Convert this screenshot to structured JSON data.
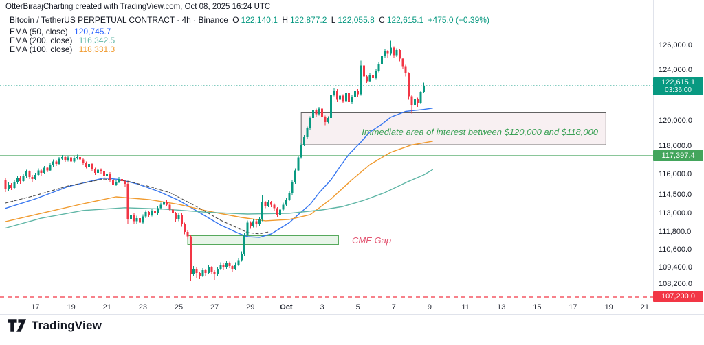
{
  "watermark": "OtterBiraajCharting created with TradingView.com, Oct 08, 2025 16:24 UTC",
  "header": {
    "title": "Bitcoin / TetherUS PERPETUAL CONTRACT · 4h · Binance",
    "o_label": "O",
    "o": "122,140.1",
    "h_label": "H",
    "h": "122,877.2",
    "l_label": "L",
    "l": "122,055.8",
    "c_label": "C",
    "c": "122,615.1",
    "change": "+475.0 (+0.39%)"
  },
  "indicators": [
    {
      "label": "EMA (50, close)",
      "value": "120,745.7",
      "color": "#2962FF"
    },
    {
      "label": "EMA (200, close)",
      "value": "116,342.5",
      "color": "#5fb6a6"
    },
    {
      "label": "EMA (100, close)",
      "value": "118,331.3",
      "color": "#f09a2e"
    }
  ],
  "annotations": {
    "interest": "Immediate area of interest between $120,000 and $118,000",
    "interest_color": "#3aa055",
    "cme": "CME Gap",
    "cme_color": "#e35672"
  },
  "price_scale": {
    "labels": [
      126000,
      124000,
      120000,
      118000,
      116000,
      114500,
      113000,
      111800,
      110600,
      109400,
      108200
    ],
    "current_badge": {
      "price": "122,615.1",
      "countdown": "03:36:00",
      "bg": "#089981"
    },
    "green_badge": {
      "price": "117,397.4",
      "bg": "#43a55c"
    },
    "red_badge": {
      "price": "107,200.0",
      "bg": "#f23645"
    }
  },
  "time_scale": {
    "ticks": [
      {
        "label": "17",
        "i": 10
      },
      {
        "label": "19",
        "i": 22
      },
      {
        "label": "21",
        "i": 34
      },
      {
        "label": "23",
        "i": 46
      },
      {
        "label": "25",
        "i": 58
      },
      {
        "label": "27",
        "i": 70
      },
      {
        "label": "29",
        "i": 82
      },
      {
        "label": "Oct",
        "i": 94,
        "bold": true
      },
      {
        "label": "3",
        "i": 106
      },
      {
        "label": "5",
        "i": 118
      },
      {
        "label": "7",
        "i": 130
      },
      {
        "label": "9",
        "i": 142
      },
      {
        "label": "11",
        "i": 154
      },
      {
        "label": "13",
        "i": 166
      },
      {
        "label": "15",
        "i": 178
      },
      {
        "label": "17",
        "i": 190
      },
      {
        "label": "19",
        "i": 202
      },
      {
        "label": "21",
        "i": 214
      }
    ]
  },
  "chart_data": {
    "type": "candlestick",
    "symbol": "BTCUSDT.P",
    "interval": "4h",
    "up_color": "#089981",
    "down_color": "#f23645",
    "candles": [
      [
        115500,
        115650,
        114650,
        114900
      ],
      [
        114900,
        115350,
        114750,
        115150
      ],
      [
        115150,
        115300,
        114800,
        114950
      ],
      [
        114950,
        115500,
        114850,
        115350
      ],
      [
        115350,
        115800,
        115250,
        115650
      ],
      [
        115650,
        115800,
        115250,
        115450
      ],
      [
        115450,
        116000,
        115350,
        115850
      ],
      [
        115850,
        116300,
        115700,
        116150
      ],
      [
        116150,
        116250,
        115600,
        115750
      ],
      [
        115750,
        115900,
        115400,
        115600
      ],
      [
        115600,
        116050,
        115500,
        115900
      ],
      [
        115900,
        116400,
        115800,
        116250
      ],
      [
        116250,
        116350,
        115850,
        116050
      ],
      [
        116050,
        116600,
        115950,
        116450
      ],
      [
        116450,
        116550,
        116100,
        116250
      ],
      [
        116250,
        116800,
        116150,
        116650
      ],
      [
        116650,
        117100,
        116550,
        116950
      ],
      [
        116950,
        117050,
        116600,
        116750
      ],
      [
        116750,
        117300,
        116650,
        117150
      ],
      [
        117150,
        117440,
        117050,
        117300
      ],
      [
        117300,
        117380,
        116900,
        117050
      ],
      [
        117050,
        117420,
        116950,
        117250
      ],
      [
        117250,
        117350,
        116800,
        116950
      ],
      [
        116950,
        117400,
        116850,
        117200
      ],
      [
        117200,
        117450,
        117100,
        117300
      ],
      [
        117300,
        117400,
        116950,
        117100
      ],
      [
        117100,
        117200,
        116700,
        116850
      ],
      [
        116850,
        116950,
        116400,
        116550
      ],
      [
        116550,
        116900,
        116450,
        116750
      ],
      [
        116750,
        116850,
        116200,
        116350
      ],
      [
        116350,
        116450,
        115900,
        116050
      ],
      [
        116050,
        116400,
        115950,
        116300
      ],
      [
        116300,
        116400,
        116000,
        116150
      ],
      [
        116150,
        116250,
        115700,
        115850
      ],
      [
        115850,
        116150,
        115750,
        116000
      ],
      [
        116000,
        116100,
        115400,
        115550
      ],
      [
        115550,
        115650,
        115000,
        115200
      ],
      [
        115200,
        115550,
        115100,
        115400
      ],
      [
        115400,
        115750,
        115300,
        115600
      ],
      [
        115600,
        115700,
        115300,
        115450
      ],
      [
        115450,
        115550,
        115050,
        115250
      ],
      [
        115250,
        115350,
        112300,
        112600
      ],
      [
        112600,
        113050,
        112450,
        112850
      ],
      [
        112850,
        112950,
        112250,
        112450
      ],
      [
        112450,
        112800,
        112300,
        112650
      ],
      [
        112650,
        112750,
        112200,
        112350
      ],
      [
        112350,
        112900,
        112250,
        112750
      ],
      [
        112750,
        113200,
        112650,
        113050
      ],
      [
        113050,
        113150,
        112700,
        112850
      ],
      [
        112850,
        113300,
        112750,
        113150
      ],
      [
        113150,
        113250,
        112800,
        112950
      ],
      [
        112950,
        113500,
        112850,
        113350
      ],
      [
        113350,
        113800,
        113250,
        113650
      ],
      [
        113650,
        114050,
        113550,
        113900
      ],
      [
        113900,
        114000,
        113500,
        113650
      ],
      [
        113650,
        113750,
        113100,
        113250
      ],
      [
        113250,
        113350,
        112800,
        112950
      ],
      [
        112950,
        113050,
        112400,
        112550
      ],
      [
        112550,
        113000,
        112450,
        112850
      ],
      [
        112850,
        112950,
        112100,
        112250
      ],
      [
        112250,
        112350,
        111600,
        111750
      ],
      [
        111750,
        111850,
        111300,
        111450
      ],
      [
        111450,
        111550,
        108400,
        108900
      ],
      [
        108900,
        109450,
        108750,
        109250
      ],
      [
        109250,
        109350,
        108550,
        108950
      ],
      [
        108950,
        109050,
        108500,
        108750
      ],
      [
        108750,
        109300,
        108650,
        109150
      ],
      [
        109150,
        109250,
        108750,
        108950
      ],
      [
        108950,
        109500,
        108850,
        109350
      ],
      [
        109350,
        109450,
        108900,
        109050
      ],
      [
        109050,
        109150,
        108450,
        108850
      ],
      [
        108850,
        109400,
        108750,
        109250
      ],
      [
        109250,
        109700,
        109150,
        109550
      ],
      [
        109550,
        109650,
        109200,
        109350
      ],
      [
        109350,
        109800,
        109250,
        109650
      ],
      [
        109650,
        109750,
        109300,
        109450
      ],
      [
        109450,
        109550,
        109050,
        109250
      ],
      [
        109250,
        109700,
        109150,
        109550
      ],
      [
        109550,
        110000,
        109450,
        109850
      ],
      [
        109850,
        110450,
        109750,
        110250
      ],
      [
        110250,
        111700,
        110150,
        111550
      ],
      [
        111550,
        112500,
        111450,
        112350
      ],
      [
        112350,
        112450,
        111950,
        112150
      ],
      [
        112150,
        112600,
        112050,
        112450
      ],
      [
        112450,
        112550,
        112050,
        112250
      ],
      [
        112250,
        112700,
        112150,
        112550
      ],
      [
        112550,
        114400,
        112450,
        113850
      ],
      [
        113850,
        113950,
        113350,
        113550
      ],
      [
        113550,
        114000,
        113450,
        113850
      ],
      [
        113850,
        113950,
        113450,
        113650
      ],
      [
        113650,
        113750,
        113150,
        113350
      ],
      [
        113350,
        113450,
        112700,
        112850
      ],
      [
        112850,
        113400,
        112750,
        113250
      ],
      [
        113250,
        113800,
        113150,
        113650
      ],
      [
        113650,
        114200,
        113550,
        114050
      ],
      [
        114050,
        114700,
        113950,
        114550
      ],
      [
        114550,
        115500,
        114450,
        115350
      ],
      [
        115350,
        116400,
        115250,
        116250
      ],
      [
        116250,
        117400,
        116150,
        117250
      ],
      [
        117250,
        118200,
        117150,
        118050
      ],
      [
        118050,
        118800,
        117950,
        118650
      ],
      [
        118650,
        119500,
        118550,
        119350
      ],
      [
        119350,
        120300,
        119250,
        120150
      ],
      [
        120150,
        120900,
        120050,
        120750
      ],
      [
        120750,
        120850,
        120250,
        120450
      ],
      [
        120450,
        121000,
        120350,
        120850
      ],
      [
        120850,
        120950,
        120100,
        120250
      ],
      [
        120250,
        120350,
        119600,
        119850
      ],
      [
        119850,
        120300,
        119700,
        120150
      ],
      [
        120150,
        122600,
        120050,
        121900
      ],
      [
        121900,
        122450,
        121800,
        122250
      ],
      [
        122250,
        122350,
        121400,
        121550
      ],
      [
        121550,
        122000,
        121450,
        121850
      ],
      [
        121850,
        121950,
        121300,
        121450
      ],
      [
        121450,
        122200,
        121350,
        122050
      ],
      [
        122050,
        122150,
        120900,
        121350
      ],
      [
        121350,
        121900,
        121250,
        121750
      ],
      [
        121750,
        122400,
        121650,
        122250
      ],
      [
        122250,
        122350,
        121750,
        121950
      ],
      [
        121950,
        124700,
        121850,
        124300
      ],
      [
        124300,
        124400,
        123250,
        123400
      ],
      [
        123400,
        123500,
        122850,
        123000
      ],
      [
        123000,
        123700,
        122900,
        123550
      ],
      [
        123550,
        123650,
        123050,
        123250
      ],
      [
        123250,
        124000,
        123150,
        123850
      ],
      [
        123850,
        124600,
        123750,
        124450
      ],
      [
        124450,
        125200,
        124350,
        125050
      ],
      [
        125050,
        125600,
        124900,
        125450
      ],
      [
        125450,
        125550,
        124950,
        125250
      ],
      [
        125250,
        126300,
        125150,
        125750
      ],
      [
        125750,
        125850,
        124950,
        125150
      ],
      [
        125150,
        125700,
        125000,
        125550
      ],
      [
        125550,
        125650,
        124650,
        124850
      ],
      [
        124850,
        124950,
        124050,
        124250
      ],
      [
        124250,
        124350,
        123400,
        123650
      ],
      [
        123650,
        123750,
        121550,
        121800
      ],
      [
        121800,
        121900,
        120500,
        121150
      ],
      [
        121150,
        121800,
        121050,
        121600
      ],
      [
        121600,
        121700,
        121000,
        121300
      ],
      [
        121300,
        122250,
        121200,
        122140
      ],
      [
        122140,
        122877,
        122056,
        122615
      ]
    ],
    "lines": [
      {
        "name": "EMA 50",
        "color": "#3575f0",
        "width": 1.4,
        "dash": null,
        "points": [
          [
            0,
            113350
          ],
          [
            10,
            114110
          ],
          [
            21,
            115050
          ],
          [
            33,
            115680
          ],
          [
            38,
            115570
          ],
          [
            44,
            115250
          ],
          [
            51,
            114720
          ],
          [
            58,
            114000
          ],
          [
            65,
            113000
          ],
          [
            72,
            112200
          ],
          [
            78,
            111660
          ],
          [
            81,
            111430
          ],
          [
            85,
            111390
          ],
          [
            89,
            111620
          ],
          [
            95,
            112350
          ],
          [
            98,
            112870
          ],
          [
            102,
            113670
          ],
          [
            105,
            114600
          ],
          [
            109,
            115550
          ],
          [
            112,
            116540
          ],
          [
            115,
            117480
          ],
          [
            119,
            118270
          ],
          [
            122,
            119060
          ],
          [
            126,
            119670
          ],
          [
            129,
            120220
          ],
          [
            134,
            120660
          ],
          [
            140,
            120800
          ],
          [
            143,
            120900
          ]
        ]
      },
      {
        "name": "EMA 100",
        "color": "#f09a2e",
        "width": 1.4,
        "dash": null,
        "points": [
          [
            0,
            112420
          ],
          [
            12,
            112960
          ],
          [
            26,
            113720
          ],
          [
            37,
            114280
          ],
          [
            48,
            114060
          ],
          [
            58,
            113670
          ],
          [
            68,
            113110
          ],
          [
            79,
            112690
          ],
          [
            87,
            112470
          ],
          [
            95,
            112560
          ],
          [
            102,
            112870
          ],
          [
            109,
            114110
          ],
          [
            116,
            115550
          ],
          [
            122,
            116700
          ],
          [
            129,
            117600
          ],
          [
            136,
            118040
          ],
          [
            143,
            118330
          ]
        ]
      },
      {
        "name": "EMA 200",
        "color": "#5fb6a6",
        "width": 1.4,
        "dash": null,
        "points": [
          [
            0,
            112000
          ],
          [
            12,
            112640
          ],
          [
            26,
            113180
          ],
          [
            40,
            113400
          ],
          [
            53,
            113290
          ],
          [
            67,
            113040
          ],
          [
            81,
            112910
          ],
          [
            95,
            112960
          ],
          [
            106,
            113220
          ],
          [
            113,
            113500
          ],
          [
            120,
            114000
          ],
          [
            127,
            114610
          ],
          [
            134,
            115340
          ],
          [
            140,
            115900
          ],
          [
            143,
            116300
          ]
        ]
      },
      {
        "name": "dashed trend",
        "color": "#4a4a4a",
        "width": 1.1,
        "dash": "4 3",
        "points": [
          [
            0,
            113780
          ],
          [
            10,
            114390
          ],
          [
            21,
            115100
          ],
          [
            33,
            115600
          ],
          [
            41,
            115440
          ],
          [
            48,
            115060
          ],
          [
            55,
            114610
          ],
          [
            60,
            114000
          ],
          [
            66,
            113220
          ],
          [
            72,
            112510
          ],
          [
            78,
            111980
          ],
          [
            81,
            111710
          ],
          [
            85,
            111620
          ],
          [
            88,
            111750
          ]
        ]
      }
    ],
    "hlines": [
      {
        "name": "current price line",
        "price": 122615,
        "color": "#089981",
        "dash": "1.5 2.5",
        "width": 1
      },
      {
        "name": "support line",
        "price": 117397.4,
        "color": "#43a55c",
        "dash": null,
        "width": 1.2
      },
      {
        "name": "lower level line",
        "price": 107200,
        "color": "#f23645",
        "dash": "6 5",
        "width": 1.3
      }
    ],
    "boxes": [
      {
        "name": "interest box",
        "start_index": 99,
        "end_index": 201,
        "price_top": 120550,
        "price_bottom": 118050,
        "fill": "rgba(225,186,198,0.22)",
        "stroke": "#5f5f5f"
      },
      {
        "name": "cme gap box",
        "start_index": 61,
        "end_index": 111.5,
        "price_top": 111500,
        "price_bottom": 110900,
        "fill": "rgba(102,187,106,0.15)",
        "stroke": "#56a95c"
      }
    ]
  },
  "footer": {
    "brand": "TradingView"
  }
}
